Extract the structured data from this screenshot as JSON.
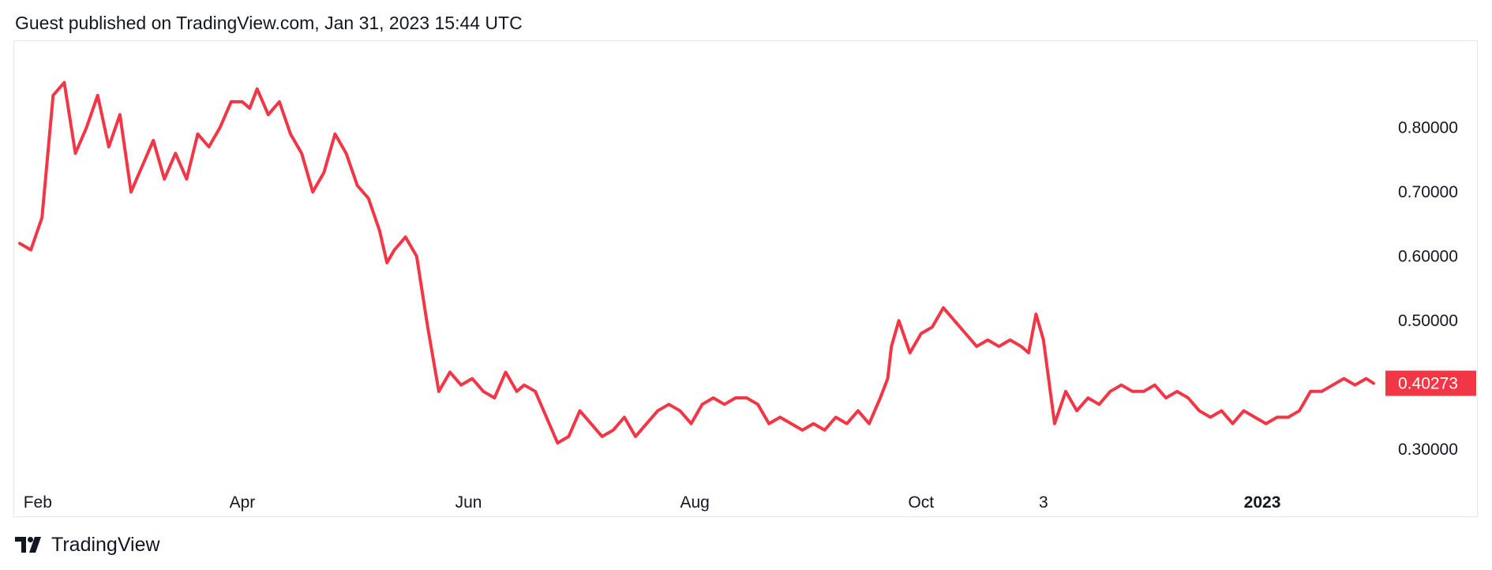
{
  "header": {
    "published_text": "Guest published on TradingView.com, Jan 31, 2023 15:44 UTC"
  },
  "brand": {
    "name": "TradingView",
    "logo_icon": "tradingview-logo-icon"
  },
  "colors": {
    "series": "#f23645",
    "price_tag_bg": "#f23645",
    "price_tag_text": "#ffffff",
    "text": "#131722",
    "frame_border": "#e6e6e6",
    "background": "#ffffff"
  },
  "chart_data": {
    "type": "line",
    "title": "",
    "xlabel": "",
    "ylabel": "",
    "grid": false,
    "x_range": [
      "2022-01-31",
      "2023-01-31"
    ],
    "ylim": [
      0.25,
      0.9
    ],
    "y_ticks": [
      {
        "value": 0.8,
        "label": "0.80000"
      },
      {
        "value": 0.7,
        "label": "0.70000"
      },
      {
        "value": 0.6,
        "label": "0.60000"
      },
      {
        "value": 0.5,
        "label": "0.50000"
      },
      {
        "value": 0.3,
        "label": "0.30000"
      }
    ],
    "x_ticks": [
      {
        "date": "2022-02-01",
        "label": "Feb",
        "bold": false
      },
      {
        "date": "2022-04-01",
        "label": "Apr",
        "bold": false
      },
      {
        "date": "2022-06-01",
        "label": "Jun",
        "bold": false
      },
      {
        "date": "2022-08-01",
        "label": "Aug",
        "bold": false
      },
      {
        "date": "2022-10-01",
        "label": "Oct",
        "bold": false
      },
      {
        "date": "2022-11-03",
        "label": "3",
        "bold": false
      },
      {
        "date": "2023-01-01",
        "label": "2023",
        "bold": true
      }
    ],
    "last_value": {
      "value": 0.40273,
      "label": "0.40273"
    },
    "series": [
      {
        "x": [
          "2022-01-31",
          "2022-02-03",
          "2022-02-06",
          "2022-02-09",
          "2022-02-12",
          "2022-02-15",
          "2022-02-18",
          "2022-02-21",
          "2022-02-24",
          "2022-02-27",
          "2022-03-02",
          "2022-03-05",
          "2022-03-08",
          "2022-03-11",
          "2022-03-14",
          "2022-03-17",
          "2022-03-20",
          "2022-03-23",
          "2022-03-26",
          "2022-03-29",
          "2022-04-01",
          "2022-04-03",
          "2022-04-05",
          "2022-04-08",
          "2022-04-11",
          "2022-04-14",
          "2022-04-17",
          "2022-04-20",
          "2022-04-23",
          "2022-04-26",
          "2022-04-29",
          "2022-05-02",
          "2022-05-05",
          "2022-05-08",
          "2022-05-10",
          "2022-05-12",
          "2022-05-15",
          "2022-05-18",
          "2022-05-21",
          "2022-05-24",
          "2022-05-27",
          "2022-05-30",
          "2022-06-02",
          "2022-06-05",
          "2022-06-08",
          "2022-06-11",
          "2022-06-14",
          "2022-06-16",
          "2022-06-19",
          "2022-06-22",
          "2022-06-25",
          "2022-06-28",
          "2022-07-01",
          "2022-07-04",
          "2022-07-07",
          "2022-07-10",
          "2022-07-13",
          "2022-07-16",
          "2022-07-19",
          "2022-07-22",
          "2022-07-25",
          "2022-07-28",
          "2022-07-31",
          "2022-08-03",
          "2022-08-06",
          "2022-08-09",
          "2022-08-12",
          "2022-08-15",
          "2022-08-18",
          "2022-08-21",
          "2022-08-24",
          "2022-08-27",
          "2022-08-30",
          "2022-09-02",
          "2022-09-05",
          "2022-09-08",
          "2022-09-11",
          "2022-09-14",
          "2022-09-17",
          "2022-09-20",
          "2022-09-22",
          "2022-09-23",
          "2022-09-25",
          "2022-09-28",
          "2022-10-01",
          "2022-10-04",
          "2022-10-07",
          "2022-10-10",
          "2022-10-13",
          "2022-10-16",
          "2022-10-19",
          "2022-10-22",
          "2022-10-25",
          "2022-10-28",
          "2022-10-30",
          "2022-11-01",
          "2022-11-03",
          "2022-11-06",
          "2022-11-09",
          "2022-11-12",
          "2022-11-15",
          "2022-11-18",
          "2022-11-21",
          "2022-11-24",
          "2022-11-27",
          "2022-11-30",
          "2022-12-03",
          "2022-12-06",
          "2022-12-09",
          "2022-12-12",
          "2022-12-15",
          "2022-12-18",
          "2022-12-21",
          "2022-12-24",
          "2022-12-27",
          "2022-12-30",
          "2023-01-02",
          "2023-01-05",
          "2023-01-08",
          "2023-01-11",
          "2023-01-14",
          "2023-01-17",
          "2023-01-20",
          "2023-01-23",
          "2023-01-26",
          "2023-01-29",
          "2023-01-31"
        ],
        "values": [
          0.62,
          0.61,
          0.66,
          0.85,
          0.87,
          0.76,
          0.8,
          0.85,
          0.77,
          0.82,
          0.7,
          0.74,
          0.78,
          0.72,
          0.76,
          0.72,
          0.79,
          0.77,
          0.8,
          0.84,
          0.84,
          0.83,
          0.86,
          0.82,
          0.84,
          0.79,
          0.76,
          0.7,
          0.73,
          0.79,
          0.76,
          0.71,
          0.69,
          0.64,
          0.59,
          0.61,
          0.63,
          0.6,
          0.49,
          0.39,
          0.42,
          0.4,
          0.41,
          0.39,
          0.38,
          0.42,
          0.39,
          0.4,
          0.39,
          0.35,
          0.31,
          0.32,
          0.36,
          0.34,
          0.32,
          0.33,
          0.35,
          0.32,
          0.34,
          0.36,
          0.37,
          0.36,
          0.34,
          0.37,
          0.38,
          0.37,
          0.38,
          0.38,
          0.37,
          0.34,
          0.35,
          0.34,
          0.33,
          0.34,
          0.33,
          0.35,
          0.34,
          0.36,
          0.34,
          0.38,
          0.41,
          0.46,
          0.5,
          0.45,
          0.48,
          0.49,
          0.52,
          0.5,
          0.48,
          0.46,
          0.47,
          0.46,
          0.47,
          0.46,
          0.45,
          0.51,
          0.47,
          0.34,
          0.39,
          0.36,
          0.38,
          0.37,
          0.39,
          0.4,
          0.39,
          0.39,
          0.4,
          0.38,
          0.39,
          0.38,
          0.36,
          0.35,
          0.36,
          0.34,
          0.36,
          0.35,
          0.34,
          0.35,
          0.35,
          0.36,
          0.39,
          0.39,
          0.4,
          0.41,
          0.4,
          0.41,
          0.40273
        ]
      }
    ]
  }
}
